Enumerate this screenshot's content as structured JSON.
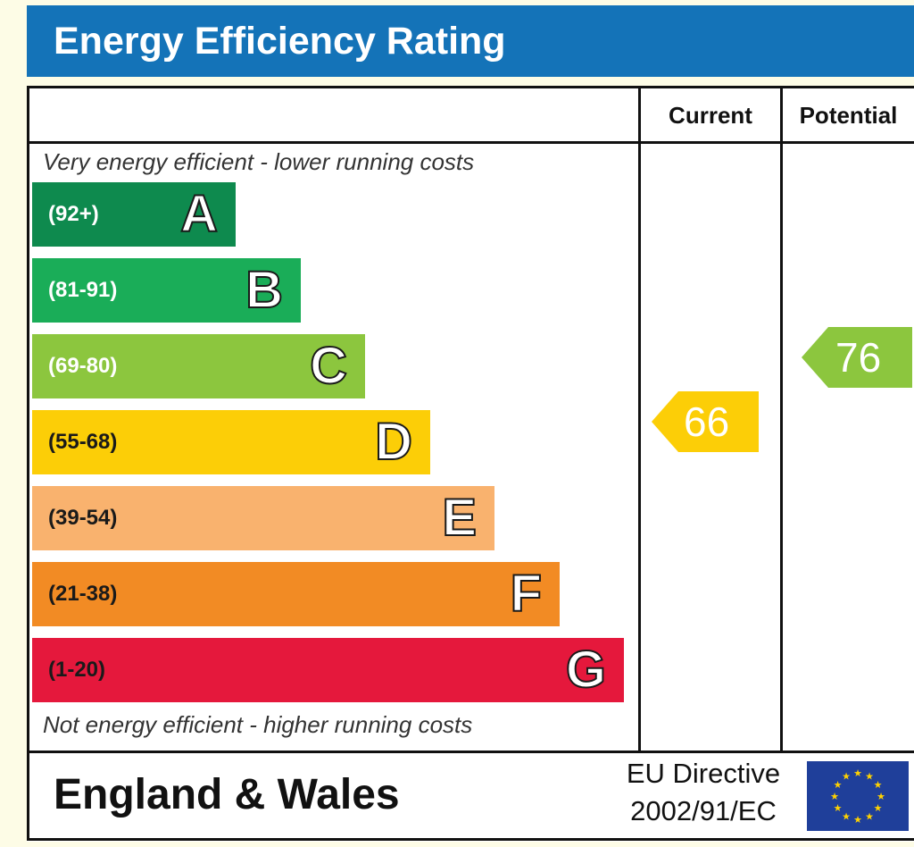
{
  "header": {
    "title": "Energy Efficiency Rating"
  },
  "columns": {
    "current": "Current",
    "potential": "Potential"
  },
  "notes": {
    "top": "Very energy efficient - lower running costs",
    "bottom": "Not energy efficient - higher running costs"
  },
  "chart_data": {
    "type": "bar",
    "title": "Energy Efficiency Rating",
    "categories": [
      "A",
      "B",
      "C",
      "D",
      "E",
      "F",
      "G"
    ],
    "ranges": [
      "(92+)",
      "(81-91)",
      "(69-80)",
      "(55-68)",
      "(39-54)",
      "(21-38)",
      "(1-20)"
    ],
    "colors": [
      "#0e8a4e",
      "#1aad58",
      "#8cc63e",
      "#fcce07",
      "#f9b26e",
      "#f28b24",
      "#e5183c"
    ],
    "current": {
      "value": 66,
      "band": "D",
      "color": "#fcce07"
    },
    "potential": {
      "value": 76,
      "band": "C",
      "color": "#8cc63e"
    }
  },
  "footer": {
    "region": "England & Wales",
    "directive_line1": "EU Directive",
    "directive_line2": "2002/91/EC"
  },
  "colors": {
    "header": "#1473b8",
    "flag": "#1f3f9a",
    "flag_stars": "#ffd200"
  },
  "icons": {
    "flag": "eu-flag-icon"
  }
}
